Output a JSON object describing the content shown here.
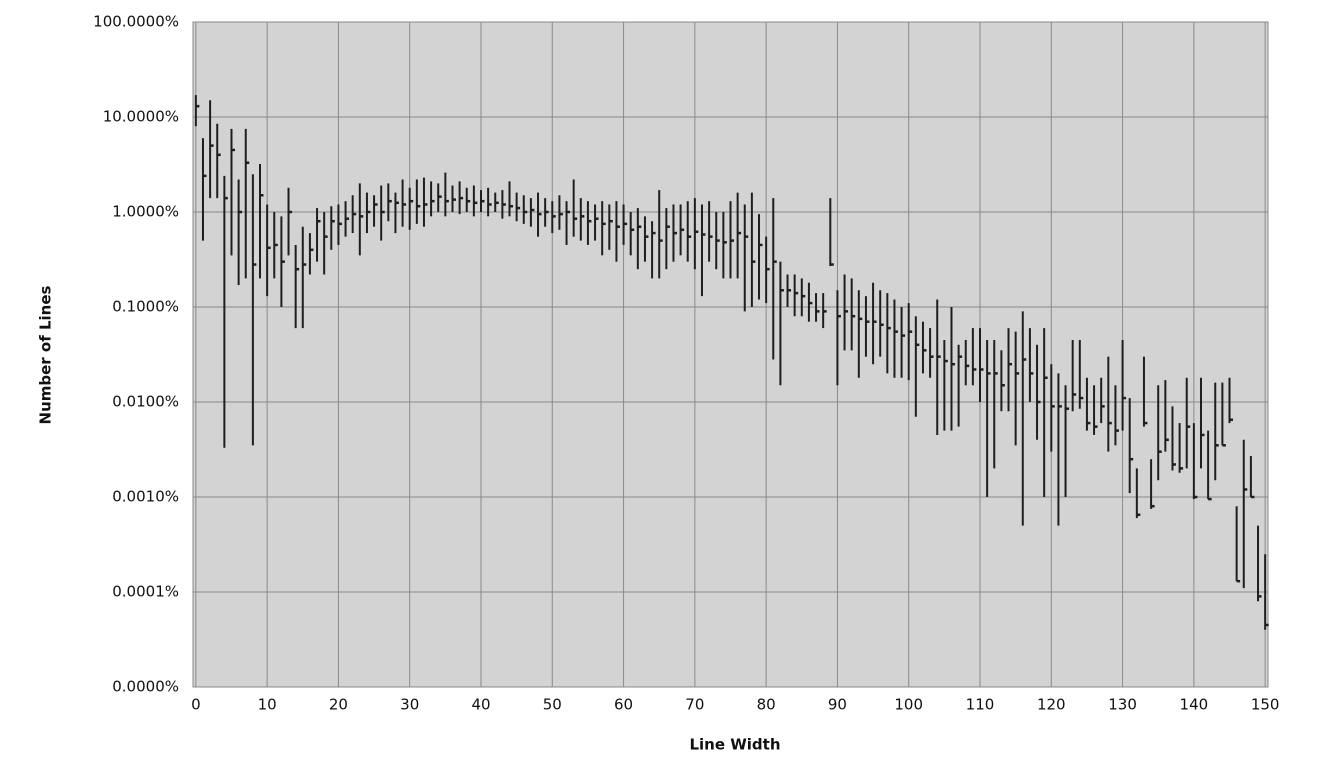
{
  "chart_data": {
    "type": "stock",
    "x_label": "Line Width",
    "y_label": "Number of Lines",
    "log_y": true,
    "grid": true,
    "color": "#1e1e1e",
    "plot_background": "#d3d3d3",
    "grid_color": "#8a8a8a",
    "xlim": [
      -0.4,
      150.4
    ],
    "xticks": [
      0,
      10,
      20,
      30,
      40,
      50,
      60,
      70,
      80,
      90,
      100,
      110,
      120,
      130,
      140,
      150
    ],
    "ylim": [
      1e-05,
      100
    ],
    "yticks": [
      {
        "value": 100,
        "label": "100.0000%"
      },
      {
        "value": 10,
        "label": "10.0000%"
      },
      {
        "value": 1,
        "label": "1.0000%"
      },
      {
        "value": 0.1,
        "label": "0.1000%"
      },
      {
        "value": 0.01,
        "label": "0.0100%"
      },
      {
        "value": 0.001,
        "label": "0.0010%"
      },
      {
        "value": 0.0001,
        "label": "0.0001%"
      },
      {
        "value": 1e-05,
        "label": "0.0000%"
      }
    ],
    "x": [
      0,
      1,
      2,
      3,
      4,
      5,
      6,
      7,
      8,
      9,
      10,
      11,
      12,
      13,
      14,
      15,
      16,
      17,
      18,
      19,
      20,
      21,
      22,
      23,
      24,
      25,
      26,
      27,
      28,
      29,
      30,
      31,
      32,
      33,
      34,
      35,
      36,
      37,
      38,
      39,
      40,
      41,
      42,
      43,
      44,
      45,
      46,
      47,
      48,
      49,
      50,
      51,
      52,
      53,
      54,
      55,
      56,
      57,
      58,
      59,
      60,
      61,
      62,
      63,
      64,
      65,
      66,
      67,
      68,
      69,
      70,
      71,
      72,
      73,
      74,
      75,
      76,
      77,
      78,
      79,
      80,
      81,
      82,
      83,
      84,
      85,
      86,
      87,
      88,
      89,
      90,
      91,
      92,
      93,
      94,
      95,
      96,
      97,
      98,
      99,
      100,
      101,
      102,
      103,
      104,
      105,
      106,
      107,
      108,
      109,
      110,
      111,
      112,
      113,
      114,
      115,
      116,
      117,
      118,
      119,
      120,
      121,
      122,
      123,
      124,
      125,
      126,
      127,
      128,
      129,
      130,
      131,
      132,
      133,
      134,
      135,
      136,
      137,
      138,
      139,
      140,
      141,
      142,
      143,
      144,
      145,
      146,
      147,
      148,
      149,
      150
    ],
    "high": [
      17,
      6,
      15,
      8.5,
      2.4,
      7.5,
      2.2,
      7.5,
      2.5,
      3.2,
      1.2,
      1.0,
      0.9,
      1.8,
      0.45,
      0.7,
      0.6,
      1.1,
      1.0,
      1.15,
      1.2,
      1.3,
      1.5,
      2.0,
      1.6,
      1.5,
      1.9,
      2.0,
      1.6,
      2.2,
      1.8,
      2.2,
      2.3,
      2.1,
      2.0,
      2.6,
      1.9,
      2.1,
      1.8,
      1.9,
      1.7,
      1.8,
      1.6,
      1.7,
      2.1,
      1.6,
      1.5,
      1.4,
      1.6,
      1.4,
      1.3,
      1.5,
      1.3,
      2.2,
      1.4,
      1.3,
      1.2,
      1.3,
      1.2,
      1.3,
      1.2,
      1.0,
      1.1,
      0.9,
      0.8,
      1.7,
      1.1,
      1.2,
      1.2,
      1.3,
      1.4,
      1.2,
      1.3,
      1.0,
      1.0,
      1.3,
      1.6,
      1.2,
      1.6,
      0.95,
      0.55,
      1.4,
      0.3,
      0.22,
      0.22,
      0.2,
      0.18,
      0.14,
      0.14,
      1.4,
      0.15,
      0.22,
      0.2,
      0.15,
      0.13,
      0.18,
      0.15,
      0.14,
      0.12,
      0.1,
      0.11,
      0.08,
      0.07,
      0.06,
      0.12,
      0.045,
      0.1,
      0.04,
      0.045,
      0.06,
      0.06,
      0.045,
      0.045,
      0.035,
      0.06,
      0.055,
      0.09,
      0.06,
      0.04,
      0.06,
      0.025,
      0.02,
      0.015,
      0.045,
      0.045,
      0.018,
      0.015,
      0.018,
      0.03,
      0.015,
      0.045,
      0.011,
      0.002,
      0.03,
      0.0025,
      0.015,
      0.017,
      0.009,
      0.006,
      0.018,
      0.006,
      0.018,
      0.005,
      0.016,
      0.016,
      0.018,
      0.0008,
      0.004,
      0.0027,
      0.0005,
      0.00025
    ],
    "low": [
      8,
      0.5,
      1.4,
      1.4,
      0.0033,
      0.35,
      0.17,
      0.2,
      0.0035,
      0.2,
      0.13,
      0.2,
      0.1,
      0.35,
      0.06,
      0.06,
      0.22,
      0.3,
      0.22,
      0.4,
      0.45,
      0.55,
      0.6,
      0.35,
      0.6,
      0.7,
      0.5,
      0.8,
      0.6,
      0.7,
      0.65,
      0.75,
      0.7,
      0.9,
      1.0,
      0.9,
      1.0,
      0.95,
      1.0,
      0.9,
      1.0,
      0.9,
      1.0,
      0.85,
      0.9,
      0.8,
      0.75,
      0.7,
      0.55,
      0.7,
      0.6,
      0.65,
      0.45,
      0.55,
      0.5,
      0.45,
      0.5,
      0.35,
      0.4,
      0.3,
      0.45,
      0.35,
      0.25,
      0.3,
      0.2,
      0.2,
      0.25,
      0.3,
      0.35,
      0.3,
      0.25,
      0.13,
      0.3,
      0.25,
      0.2,
      0.2,
      0.2,
      0.09,
      0.1,
      0.12,
      0.11,
      0.028,
      0.015,
      0.1,
      0.08,
      0.08,
      0.07,
      0.07,
      0.06,
      0.27,
      0.015,
      0.035,
      0.035,
      0.018,
      0.03,
      0.025,
      0.03,
      0.02,
      0.018,
      0.018,
      0.017,
      0.007,
      0.02,
      0.018,
      0.0045,
      0.005,
      0.005,
      0.0055,
      0.015,
      0.015,
      0.01,
      0.001,
      0.002,
      0.008,
      0.008,
      0.0035,
      0.0005,
      0.01,
      0.004,
      0.001,
      0.003,
      0.0005,
      0.001,
      0.008,
      0.0085,
      0.005,
      0.0045,
      0.006,
      0.003,
      0.0035,
      0.005,
      0.0011,
      0.0006,
      0.0055,
      0.00075,
      0.0015,
      0.003,
      0.0019,
      0.0018,
      0.002,
      0.00095,
      0.002,
      0.00095,
      0.0015,
      0.0035,
      0.006,
      0.00013,
      0.00011,
      0.001,
      8e-05,
      4e-05
    ],
    "close": [
      13,
      2.4,
      5,
      4,
      1.4,
      4.5,
      1.0,
      3.3,
      0.28,
      1.5,
      0.42,
      0.45,
      0.3,
      1.0,
      0.25,
      0.28,
      0.4,
      0.8,
      0.55,
      0.8,
      0.75,
      0.85,
      0.95,
      0.9,
      1.0,
      1.2,
      1.0,
      1.3,
      1.25,
      1.2,
      1.3,
      1.15,
      1.2,
      1.3,
      1.45,
      1.3,
      1.35,
      1.4,
      1.3,
      1.25,
      1.3,
      1.2,
      1.25,
      1.2,
      1.15,
      1.1,
      1.0,
      1.05,
      0.95,
      1.0,
      0.9,
      0.95,
      1.0,
      0.85,
      0.9,
      0.8,
      0.85,
      0.75,
      0.8,
      0.7,
      0.75,
      0.65,
      0.7,
      0.55,
      0.6,
      0.5,
      0.7,
      0.6,
      0.65,
      0.55,
      0.62,
      0.58,
      0.55,
      0.5,
      0.48,
      0.5,
      0.6,
      0.55,
      0.3,
      0.45,
      0.25,
      0.3,
      0.15,
      0.15,
      0.14,
      0.13,
      0.11,
      0.09,
      0.09,
      0.28,
      0.08,
      0.09,
      0.08,
      0.075,
      0.07,
      0.07,
      0.065,
      0.06,
      0.055,
      0.05,
      0.055,
      0.04,
      0.035,
      0.03,
      0.03,
      0.027,
      0.025,
      0.03,
      0.024,
      0.022,
      0.022,
      0.02,
      0.02,
      0.015,
      0.025,
      0.02,
      0.028,
      0.02,
      0.01,
      0.018,
      0.009,
      0.009,
      0.0085,
      0.012,
      0.011,
      0.006,
      0.0055,
      0.009,
      0.006,
      0.005,
      0.011,
      0.0025,
      0.00065,
      0.006,
      0.0008,
      0.003,
      0.004,
      0.0022,
      0.002,
      0.0055,
      0.001,
      0.0045,
      0.00095,
      0.0035,
      0.0035,
      0.0065,
      0.00013,
      0.0012,
      0.001,
      9e-05,
      4.5e-05
    ]
  }
}
